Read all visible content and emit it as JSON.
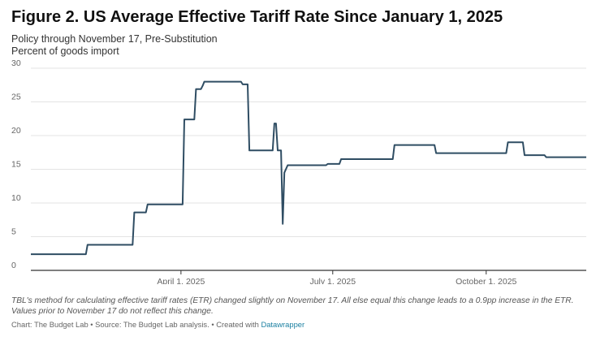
{
  "title": "Figure 2. US Average Effective Tariff Rate Since January 1, 2025",
  "subtitle_line1": "Policy through November 17, Pre-Substitution",
  "subtitle_line2": "Percent of goods import",
  "notes": "TBL's method for calculating effective tariff rates (ETR) changed slightly on November 17. All else equal this change leads to a 0.9pp increase in the ETR. Values prior to November 17 do not reflect this change.",
  "credit_prefix": "Chart: The Budget Lab • Source: The Budget Lab analysis. • Created with ",
  "credit_link": "Datawrapper",
  "colors": {
    "line": "#2f4d63",
    "grid": "#e3e3e3",
    "axis": "#333333",
    "link": "#1d81a2"
  },
  "chart_data": {
    "type": "line",
    "title": "Figure 2. US Average Effective Tariff Rate Since January 1, 2025",
    "ylabel": "Percent of goods import",
    "xlim": [
      "2025-01-01",
      "2025-11-30"
    ],
    "ylim": [
      0,
      30
    ],
    "y_ticks": [
      0,
      5,
      10,
      15,
      20,
      25,
      30
    ],
    "x_ticks": [
      {
        "date": "2025-04-01",
        "label": "April 1, 2025"
      },
      {
        "date": "2025-07-01",
        "label": "July 1, 2025"
      },
      {
        "date": "2025-10-01",
        "label": "October 1, 2025"
      }
    ],
    "grid": true,
    "series": [
      {
        "points": [
          [
            "2025-01-01",
            2.4
          ],
          [
            "2025-02-03",
            2.4
          ],
          [
            "2025-02-04",
            3.8
          ],
          [
            "2025-03-03",
            3.8
          ],
          [
            "2025-03-04",
            8.6
          ],
          [
            "2025-03-11",
            8.6
          ],
          [
            "2025-03-12",
            9.8
          ],
          [
            "2025-04-02",
            9.8
          ],
          [
            "2025-04-03",
            22.4
          ],
          [
            "2025-04-09",
            22.4
          ],
          [
            "2025-04-10",
            26.9
          ],
          [
            "2025-04-13",
            26.9
          ],
          [
            "2025-04-14",
            27.4
          ],
          [
            "2025-04-15",
            28.0
          ],
          [
            "2025-05-01",
            28.0
          ],
          [
            "2025-05-07",
            28.0
          ],
          [
            "2025-05-08",
            27.6
          ],
          [
            "2025-05-11",
            27.6
          ],
          [
            "2025-05-12",
            17.8
          ],
          [
            "2025-05-26",
            17.8
          ],
          [
            "2025-05-27",
            21.8
          ],
          [
            "2025-05-28",
            21.8
          ],
          [
            "2025-05-29",
            17.8
          ],
          [
            "2025-05-31",
            17.8
          ],
          [
            "2025-06-01",
            6.9
          ],
          [
            "2025-06-02",
            14.5
          ],
          [
            "2025-06-04",
            15.6
          ],
          [
            "2025-06-27",
            15.6
          ],
          [
            "2025-06-28",
            15.8
          ],
          [
            "2025-07-05",
            15.8
          ],
          [
            "2025-07-06",
            16.5
          ],
          [
            "2025-08-06",
            16.5
          ],
          [
            "2025-08-07",
            18.6
          ],
          [
            "2025-08-31",
            18.6
          ],
          [
            "2025-09-01",
            17.4
          ],
          [
            "2025-10-13",
            17.4
          ],
          [
            "2025-10-14",
            19.0
          ],
          [
            "2025-10-23",
            19.0
          ],
          [
            "2025-10-24",
            17.1
          ],
          [
            "2025-11-05",
            17.1
          ],
          [
            "2025-11-06",
            16.8
          ],
          [
            "2025-11-30",
            16.8
          ]
        ]
      }
    ]
  }
}
